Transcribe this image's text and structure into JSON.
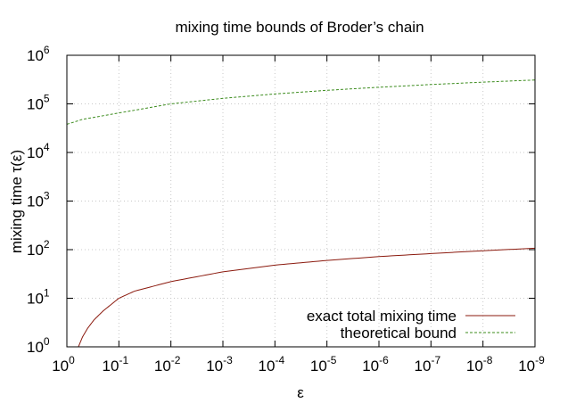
{
  "chart_data": {
    "type": "line",
    "title": "mixing time bounds of Broder’s chain",
    "xlabel": "ε",
    "ylabel": "mixing time τ(ε)",
    "x_scale": "reciprocal-log",
    "y_scale": "log",
    "xlim": [
      1,
      1e-09
    ],
    "ylim": [
      1,
      1000000
    ],
    "grid": true,
    "legend_position": "bottom-right",
    "x_ticks": [
      {
        "base": "10",
        "exp": "0"
      },
      {
        "base": "10",
        "exp": "-1"
      },
      {
        "base": "10",
        "exp": "-2"
      },
      {
        "base": "10",
        "exp": "-3"
      },
      {
        "base": "10",
        "exp": "-4"
      },
      {
        "base": "10",
        "exp": "-5"
      },
      {
        "base": "10",
        "exp": "-6"
      },
      {
        "base": "10",
        "exp": "-7"
      },
      {
        "base": "10",
        "exp": "-8"
      },
      {
        "base": "10",
        "exp": "-9"
      }
    ],
    "y_ticks": [
      {
        "base": "10",
        "exp": "0"
      },
      {
        "base": "10",
        "exp": "1"
      },
      {
        "base": "10",
        "exp": "2"
      },
      {
        "base": "10",
        "exp": "3"
      },
      {
        "base": "10",
        "exp": "4"
      },
      {
        "base": "10",
        "exp": "5"
      },
      {
        "base": "10",
        "exp": "6"
      }
    ],
    "series": [
      {
        "name": "exact total mixing time",
        "color": "#8b1a0e",
        "dash": "solid",
        "x": [
          0.6,
          0.5,
          0.4,
          0.3,
          0.2,
          0.1,
          0.05,
          0.01,
          0.001,
          0.0001,
          1e-05,
          1e-06,
          1e-07,
          1e-08,
          1e-09
        ],
        "y": [
          1,
          1.6,
          2.4,
          3.6,
          5.5,
          10,
          14,
          22,
          35,
          48,
          60,
          72,
          83,
          95,
          107
        ]
      },
      {
        "name": "theoretical bound",
        "color": "#3c8c1e",
        "dash": "dashed",
        "x": [
          1,
          0.5,
          0.1,
          0.01,
          0.001,
          0.0001,
          1e-05,
          1e-06,
          1e-07,
          1e-08,
          1e-09
        ],
        "y": [
          38000,
          48000,
          65000,
          100000,
          130000,
          160000,
          190000,
          220000,
          250000,
          280000,
          310000
        ]
      }
    ]
  }
}
